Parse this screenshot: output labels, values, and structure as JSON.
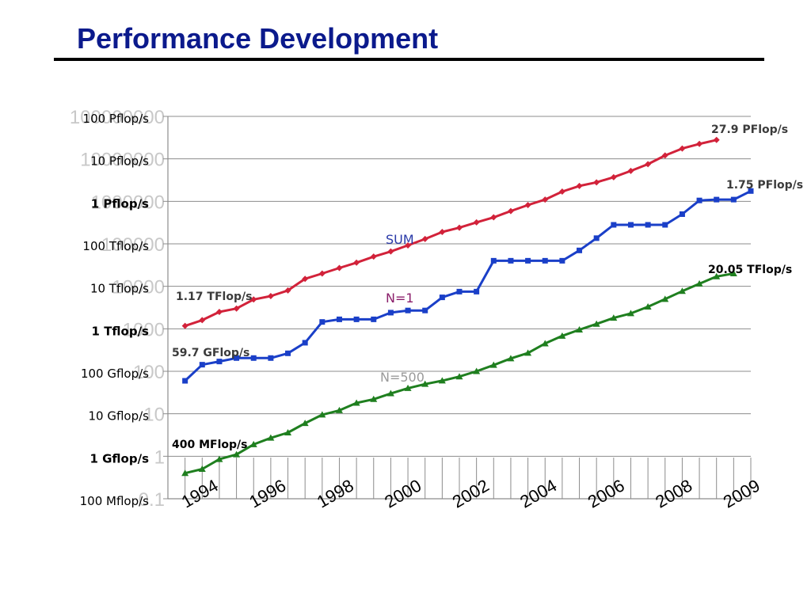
{
  "title": "Performance Development",
  "colors": {
    "title": "#0b1a8c",
    "sum": "#d2223a",
    "n1": "#1a3fc8",
    "n500": "#1f7f1f",
    "n500_label": "#9a9a9a",
    "sum_label": "#2a3aa8",
    "n1_label": "#8b1f6b",
    "annotation": "#3b3b3b"
  },
  "chart_data": {
    "type": "line",
    "title": "Performance Development",
    "log_scale": true,
    "ylim": [
      0.1,
      100000000
    ],
    "xlim": [
      1993.0,
      2010.0
    ],
    "grid": "horizontal",
    "y_ticks": [
      {
        "value": 0.1,
        "text": "0.1",
        "label": "100 Mflop/s",
        "bold": false
      },
      {
        "value": 1,
        "text": "1",
        "label": "1 Gflop/s",
        "bold": true
      },
      {
        "value": 10,
        "text": "10",
        "label": "10 Gflop/s",
        "bold": false
      },
      {
        "value": 100,
        "text": "100",
        "label": "100 Gflop/s",
        "bold": false
      },
      {
        "value": 1000,
        "text": "1000",
        "label": "1 Tflop/s",
        "bold": true
      },
      {
        "value": 10000,
        "text": "10000",
        "label": "10 Tflop/s",
        "bold": false
      },
      {
        "value": 100000,
        "text": "100000",
        "label": "100 Tflop/s",
        "bold": false
      },
      {
        "value": 1000000,
        "text": "1000000",
        "label": "1 Pflop/s",
        "bold": true
      },
      {
        "value": 10000000,
        "text": "10000000",
        "label": "10 Pflop/s",
        "bold": false
      },
      {
        "value": 100000000,
        "text": "100000000",
        "label": "100 Pflop/s",
        "bold": false
      }
    ],
    "x_ticks": [
      "1994",
      "1996",
      "1998",
      "2000",
      "2002",
      "2004",
      "2006",
      "2008",
      "2009"
    ],
    "series": [
      {
        "name": "SUM",
        "x_start": 1993.5,
        "x_step": 0.5,
        "values": [
          1170,
          1600,
          2500,
          3000,
          4900,
          5900,
          8000,
          15000,
          20000,
          27000,
          36000,
          50000,
          66000,
          92000,
          130000,
          190000,
          240000,
          320000,
          420000,
          590000,
          820000,
          1100000,
          1700000,
          2300000,
          2800000,
          3700000,
          5200000,
          7500000,
          12000000,
          17500000,
          22500000,
          27900000
        ]
      },
      {
        "name": "N=1",
        "x_start": 1993.5,
        "x_step": 0.5,
        "values": [
          59.7,
          143,
          170,
          205,
          205,
          205,
          265,
          470,
          1450,
          1670,
          1670,
          1670,
          2400,
          2700,
          2700,
          5500,
          7500,
          7500,
          40000,
          40000,
          40000,
          40000,
          40000,
          70000,
          136000,
          280000,
          280000,
          280000,
          280000,
          500000,
          1050000,
          1100000,
          1100000,
          1750000
        ]
      },
      {
        "name": "N=500",
        "x_start": 1993.5,
        "x_step": 0.5,
        "values": [
          0.4,
          0.5,
          0.85,
          1.1,
          1.9,
          2.7,
          3.6,
          6,
          9.5,
          12,
          18,
          22,
          30,
          40,
          50,
          60,
          75,
          100,
          140,
          200,
          270,
          450,
          680,
          950,
          1300,
          1800,
          2300,
          3300,
          5000,
          7700,
          11500,
          17000,
          20050
        ]
      }
    ],
    "series_labels": [
      "SUM",
      "N=1",
      "N=500"
    ],
    "annotations": {
      "sum_start": "1.17 TFlop/s",
      "sum_end": "27.9 PFlop/s",
      "n1_start": "59.7 GFlop/s",
      "n1_end": "1.75 PFlop/s",
      "n500_start": "400 MFlop/s",
      "n500_end": "20.05 TFlop/s"
    }
  }
}
